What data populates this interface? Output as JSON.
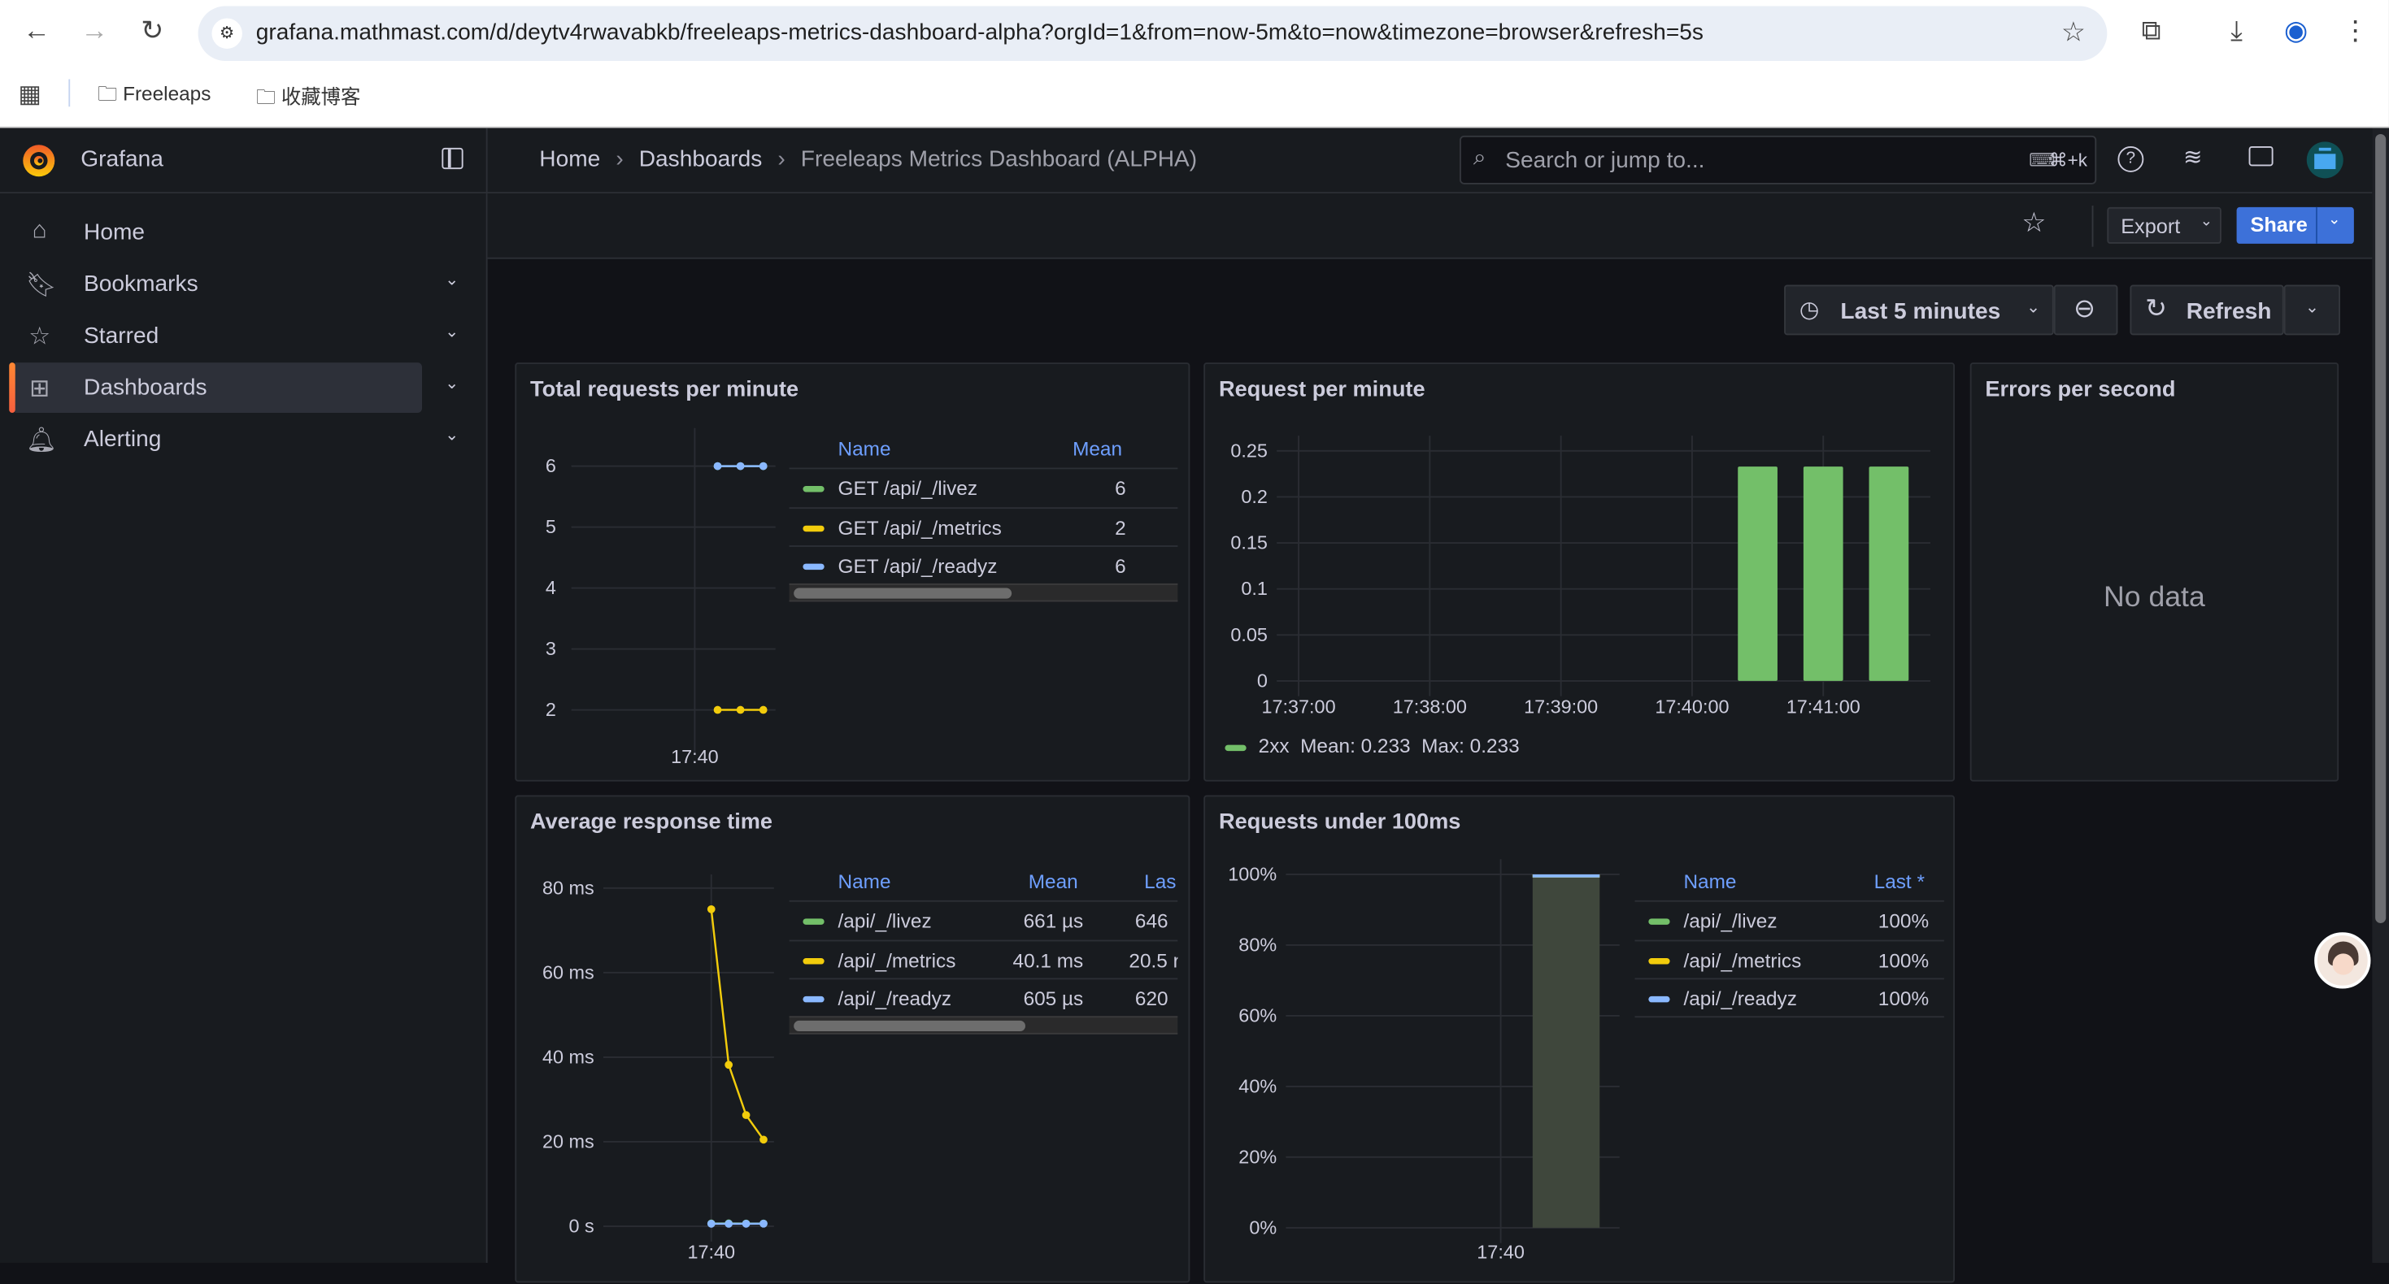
{
  "browser": {
    "url": "grafana.mathmast.com/d/deytv4rwavabkb/freeleaps-metrics-dashboard-alpha?orgId=1&from=now-5m&to=now&timezone=browser&refresh=5s",
    "bookmarks": [
      "Freeleaps",
      "收藏博客"
    ]
  },
  "app": {
    "name": "Grafana"
  },
  "breadcrumb": [
    "Home",
    "Dashboards",
    "Freeleaps Metrics Dashboard (ALPHA)"
  ],
  "search": {
    "placeholder": "Search or jump to...",
    "shortcut": "⌘+k"
  },
  "sidebar": {
    "items": [
      {
        "label": "Home",
        "icon": "home-icon"
      },
      {
        "label": "Bookmarks",
        "icon": "bookmark-icon"
      },
      {
        "label": "Starred",
        "icon": "star-icon"
      },
      {
        "label": "Dashboards",
        "icon": "dashboards-icon",
        "active": true
      },
      {
        "label": "Alerting",
        "icon": "bell-icon"
      }
    ]
  },
  "toolbar": {
    "export": "Export",
    "share": "Share",
    "time_range": "Last 5 minutes",
    "refresh": "Refresh"
  },
  "colors": {
    "livez": "#73bf69",
    "metrics": "#f2cc0c",
    "readyz": "#8ab8ff",
    "accent": "#3d71d9",
    "bar_2xx": "#73bf69"
  },
  "panels": {
    "total_requests": {
      "title": "Total requests per minute",
      "legend": {
        "headers": [
          "Name",
          "Mean"
        ],
        "rows": [
          {
            "name": "GET /api/_/livez",
            "mean": "6"
          },
          {
            "name": "GET /api/_/metrics",
            "mean": "2"
          },
          {
            "name": "GET /api/_/readyz",
            "mean": "6"
          }
        ]
      }
    },
    "request_per_minute": {
      "title": "Request per minute",
      "legend": {
        "series": "2xx",
        "mean": "Mean: 0.233",
        "max": "Max: 0.233"
      }
    },
    "errors_per_second": {
      "title": "Errors per second",
      "message": "No data"
    },
    "avg_response_time": {
      "title": "Average response time",
      "legend": {
        "headers": [
          "Name",
          "Mean",
          "Las"
        ],
        "rows": [
          {
            "name": "/api/_/livez",
            "mean": "661 µs",
            "last": "646"
          },
          {
            "name": "/api/_/metrics",
            "mean": "40.1 ms",
            "last": "20.5 r"
          },
          {
            "name": "/api/_/readyz",
            "mean": "605 µs",
            "last": "620"
          }
        ]
      }
    },
    "requests_under_100ms": {
      "title": "Requests under 100ms",
      "legend": {
        "headers": [
          "Name",
          "Last *"
        ],
        "rows": [
          {
            "name": "/api/_/livez",
            "last": "100%"
          },
          {
            "name": "/api/_/metrics",
            "last": "100%"
          },
          {
            "name": "/api/_/readyz",
            "last": "100%"
          }
        ]
      }
    }
  },
  "chart_data": [
    {
      "id": "total_requests",
      "type": "line",
      "title": "Total requests per minute",
      "xlim": [
        "17:37:18",
        "17:41:46"
      ],
      "ylim": [
        1.5,
        6.4
      ],
      "yticks": [
        "2",
        "3",
        "4",
        "5",
        "6"
      ],
      "xticks": [
        "17:40"
      ],
      "grid": true,
      "series": [
        {
          "name": "GET /api/_/livez",
          "color": "#73bf69",
          "x": [
            "17:40:30",
            "17:41:00",
            "17:41:30"
          ],
          "y": [
            6,
            6,
            6
          ]
        },
        {
          "name": "GET /api/_/metrics",
          "color": "#f2cc0c",
          "x": [
            "17:40:30",
            "17:41:00",
            "17:41:30"
          ],
          "y": [
            2,
            2,
            2
          ]
        },
        {
          "name": "GET /api/_/readyz",
          "color": "#8ab8ff",
          "x": [
            "17:40:30",
            "17:41:00",
            "17:41:30"
          ],
          "y": [
            6,
            6,
            6
          ]
        }
      ]
    },
    {
      "id": "request_per_minute",
      "type": "bar",
      "title": "Request per minute",
      "xlim": [
        "17:36:50",
        "17:41:49"
      ],
      "ylim": [
        0,
        0.25
      ],
      "yticks": [
        "0",
        "0.05",
        "0.1",
        "0.15",
        "0.2",
        "0.25"
      ],
      "xticks": [
        "17:37:00",
        "17:38:00",
        "17:39:00",
        "17:40:00",
        "17:41:00"
      ],
      "grid": true,
      "series": [
        {
          "name": "2xx",
          "color": "#73bf69",
          "x": [
            "17:40:30",
            "17:41:00",
            "17:41:30"
          ],
          "y": [
            0.233,
            0.233,
            0.233
          ]
        }
      ]
    },
    {
      "id": "avg_response_time",
      "type": "line",
      "title": "Average response time",
      "xlim": [
        "17:38:27",
        "17:40:54"
      ],
      "ylim": [
        0,
        80
      ],
      "yticks": [
        "0 s",
        "20 ms",
        "40 ms",
        "60 ms",
        "80 ms"
      ],
      "xticks": [
        "17:40"
      ],
      "grid": true,
      "series": [
        {
          "name": "/api/_/livez",
          "color": "#73bf69",
          "x": [
            "17:40:00",
            "17:40:15",
            "17:40:30",
            "17:40:45"
          ],
          "y": [
            0.66,
            0.68,
            0.65,
            0.646
          ]
        },
        {
          "name": "/api/_/metrics",
          "color": "#f2cc0c",
          "x": [
            "17:40:00",
            "17:40:15",
            "17:40:30",
            "17:40:45"
          ],
          "y": [
            75,
            38.2,
            26.3,
            20.5
          ]
        },
        {
          "name": "/api/_/readyz",
          "color": "#8ab8ff",
          "x": [
            "17:40:00",
            "17:40:15",
            "17:40:30",
            "17:40:45"
          ],
          "y": [
            0.6,
            0.59,
            0.6,
            0.62
          ]
        }
      ]
    },
    {
      "id": "requests_under_100ms",
      "type": "bar",
      "title": "Requests under 100ms",
      "xlim": [
        "17:36:43",
        "17:41:49"
      ],
      "ylim": [
        0,
        100
      ],
      "yticks": [
        "0%",
        "20%",
        "40%",
        "60%",
        "80%",
        "100%"
      ],
      "xticks": [
        "17:40"
      ],
      "grid": true,
      "series": [
        {
          "name": "/api/_/livez",
          "color": "#73bf69",
          "x": [
            "17:41:00"
          ],
          "y": [
            100
          ]
        },
        {
          "name": "/api/_/metrics",
          "color": "#f2cc0c",
          "x": [
            "17:41:00"
          ],
          "y": [
            100
          ]
        },
        {
          "name": "/api/_/readyz",
          "color": "#8ab8ff",
          "x": [
            "17:41:00"
          ],
          "y": [
            100
          ]
        }
      ]
    }
  ]
}
